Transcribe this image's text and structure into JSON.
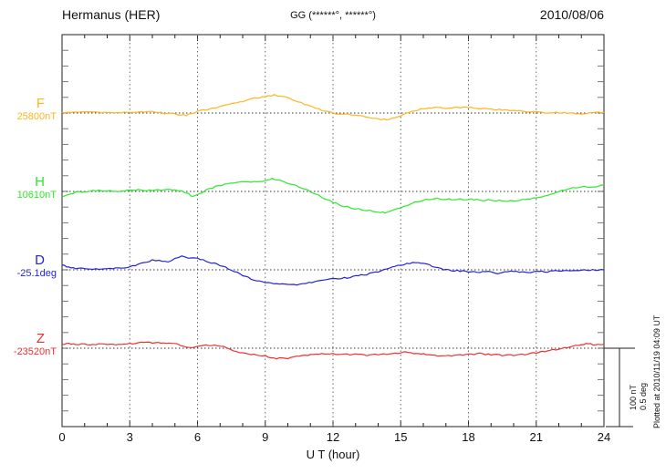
{
  "header": {
    "station": "Hermanus (HER)",
    "coordinates": "GG (******°, ******°)",
    "date": "2010/08/06"
  },
  "xaxis": {
    "label": "U T (hour)",
    "ticks": [
      "0",
      "3",
      "6",
      "9",
      "12",
      "15",
      "18",
      "21",
      "24"
    ]
  },
  "scale_bar": {
    "line1": "100 nT",
    "line2": "0.5 deg"
  },
  "plotted_at": "Plotted at 2010/11/19 04:09 UT",
  "colors": {
    "axis": "#222222",
    "minor_ticks": "#777777",
    "grid": "#666666",
    "baseline": "#333333",
    "background": "#FFFFFF"
  },
  "chart_data": {
    "type": "line",
    "title": "Hermanus (HER) magnetogram 2010/08/06",
    "xlabel": "U T (hour)",
    "x_range": [
      0,
      24
    ],
    "x_major_ticks": [
      0,
      3,
      6,
      9,
      12,
      15,
      18,
      21,
      24
    ],
    "x_minor_tick_step_hours": 1,
    "grid": "dotted vertical lines every 3 h; dotted horizontal baseline per trace",
    "scale_bar": {
      "nT": 100,
      "deg": 0.5
    },
    "values_are_offsets_from_baseline": true,
    "series": [
      {
        "name": "F",
        "label": "F",
        "baseline_label": "25800nT",
        "baseline": 25800,
        "units": "nT",
        "scale_span_per_bar": 100,
        "color": "#FFB41E",
        "points": [
          [
            0,
            0
          ],
          [
            0.5,
            1
          ],
          [
            1,
            2
          ],
          [
            1.5,
            1
          ],
          [
            2,
            1
          ],
          [
            2.5,
            0
          ],
          [
            3,
            1
          ],
          [
            3.5,
            1
          ],
          [
            4,
            2
          ],
          [
            4.5,
            0
          ],
          [
            5,
            -1
          ],
          [
            5.5,
            -3
          ],
          [
            6,
            2
          ],
          [
            6.5,
            5
          ],
          [
            7,
            8
          ],
          [
            7.5,
            12
          ],
          [
            8,
            15
          ],
          [
            8.5,
            19
          ],
          [
            9,
            21
          ],
          [
            9.4,
            23
          ],
          [
            9.8,
            21
          ],
          [
            10.2,
            17
          ],
          [
            10.6,
            13
          ],
          [
            11,
            9
          ],
          [
            11.5,
            4
          ],
          [
            12,
            0
          ],
          [
            12.5,
            -1
          ],
          [
            13,
            -3
          ],
          [
            13.5,
            -5
          ],
          [
            14,
            -8
          ],
          [
            14.5,
            -8
          ],
          [
            15,
            -3
          ],
          [
            15.5,
            2
          ],
          [
            16,
            6
          ],
          [
            16.5,
            7
          ],
          [
            17,
            6
          ],
          [
            17.5,
            7
          ],
          [
            18,
            7
          ],
          [
            18.5,
            6
          ],
          [
            19,
            5
          ],
          [
            19.5,
            4
          ],
          [
            20,
            3
          ],
          [
            20.5,
            2
          ],
          [
            21,
            1
          ],
          [
            21.5,
            0
          ],
          [
            22,
            1
          ],
          [
            22.5,
            0
          ],
          [
            23,
            -1
          ],
          [
            23.5,
            0
          ],
          [
            24,
            1
          ]
        ]
      },
      {
        "name": "H",
        "label": "H",
        "baseline_label": "10610nT",
        "baseline": 10610,
        "units": "nT",
        "scale_span_per_bar": 100,
        "color": "#2DE82D",
        "points": [
          [
            0,
            -8
          ],
          [
            0.3,
            -4
          ],
          [
            0.6,
            -1
          ],
          [
            1,
            0
          ],
          [
            1.5,
            1
          ],
          [
            2,
            1
          ],
          [
            2.5,
            0
          ],
          [
            3,
            2
          ],
          [
            3.5,
            2
          ],
          [
            4,
            1
          ],
          [
            4.5,
            2
          ],
          [
            5,
            2
          ],
          [
            5.3,
            1
          ],
          [
            5.6,
            -3
          ],
          [
            5.8,
            -7
          ],
          [
            6.1,
            -3
          ],
          [
            6.4,
            2
          ],
          [
            6.8,
            6
          ],
          [
            7.2,
            9
          ],
          [
            7.6,
            11
          ],
          [
            8,
            12
          ],
          [
            8.5,
            12
          ],
          [
            9,
            13
          ],
          [
            9.3,
            16
          ],
          [
            9.6,
            14
          ],
          [
            10,
            11
          ],
          [
            10.5,
            6
          ],
          [
            11,
            0
          ],
          [
            11.5,
            -7
          ],
          [
            12,
            -14
          ],
          [
            12.5,
            -19
          ],
          [
            13,
            -22
          ],
          [
            13.5,
            -24
          ],
          [
            14,
            -26
          ],
          [
            14.3,
            -27
          ],
          [
            14.7,
            -24
          ],
          [
            15,
            -21
          ],
          [
            15.5,
            -15
          ],
          [
            16,
            -11
          ],
          [
            16.5,
            -9
          ],
          [
            17,
            -10
          ],
          [
            17.5,
            -10
          ],
          [
            18,
            -10
          ],
          [
            18.5,
            -11
          ],
          [
            19,
            -11
          ],
          [
            19.5,
            -12
          ],
          [
            20,
            -12
          ],
          [
            20.5,
            -10
          ],
          [
            21,
            -8
          ],
          [
            21.5,
            -5
          ],
          [
            22,
            0
          ],
          [
            22.5,
            4
          ],
          [
            23,
            6
          ],
          [
            23.5,
            6
          ],
          [
            24,
            8
          ]
        ]
      },
      {
        "name": "D",
        "label": "D",
        "baseline_label": "-25.1deg",
        "baseline": -25.1,
        "units": "deg",
        "scale_span_per_bar": 0.5,
        "color": "#2424D8",
        "points": [
          [
            0,
            0.03
          ],
          [
            0.3,
            0.018
          ],
          [
            0.6,
            0.01
          ],
          [
            1,
            0.006
          ],
          [
            1.5,
            0.006
          ],
          [
            2,
            0.006
          ],
          [
            2.5,
            0.01
          ],
          [
            3,
            0.017
          ],
          [
            3.5,
            0.04
          ],
          [
            4,
            0.062
          ],
          [
            4.3,
            0.058
          ],
          [
            4.7,
            0.052
          ],
          [
            5,
            0.07
          ],
          [
            5.3,
            0.087
          ],
          [
            5.6,
            0.078
          ],
          [
            6,
            0.07
          ],
          [
            6.5,
            0.052
          ],
          [
            7,
            0.029
          ],
          [
            7.5,
            0
          ],
          [
            8,
            -0.035
          ],
          [
            8.5,
            -0.064
          ],
          [
            9,
            -0.081
          ],
          [
            9.5,
            -0.087
          ],
          [
            10,
            -0.093
          ],
          [
            10.4,
            -0.093
          ],
          [
            10.8,
            -0.087
          ],
          [
            11.2,
            -0.076
          ],
          [
            11.6,
            -0.064
          ],
          [
            12,
            -0.058
          ],
          [
            12.5,
            -0.052
          ],
          [
            13,
            -0.041
          ],
          [
            13.5,
            -0.029
          ],
          [
            14,
            -0.012
          ],
          [
            14.5,
            0.012
          ],
          [
            15,
            0.029
          ],
          [
            15.4,
            0.041
          ],
          [
            15.8,
            0.047
          ],
          [
            16,
            0.041
          ],
          [
            16.4,
            0.023
          ],
          [
            16.8,
            0.006
          ],
          [
            17,
            0
          ],
          [
            17.5,
            -0.006
          ],
          [
            18,
            -0.012
          ],
          [
            18.5,
            -0.015
          ],
          [
            19,
            -0.012
          ],
          [
            19.3,
            -0.029
          ],
          [
            19.6,
            -0.012
          ],
          [
            20,
            -0.012
          ],
          [
            20.5,
            -0.017
          ],
          [
            21,
            -0.012
          ],
          [
            21.5,
            -0.012
          ],
          [
            22,
            -0.006
          ],
          [
            22.5,
            -0.006
          ],
          [
            23,
            -0.003
          ],
          [
            23.5,
            0
          ],
          [
            24,
            0
          ]
        ]
      },
      {
        "name": "Z",
        "label": "Z",
        "baseline_label": "-23520nT",
        "baseline": -23520,
        "units": "nT",
        "scale_span_per_bar": 100,
        "color": "#F03030",
        "points": [
          [
            0,
            5
          ],
          [
            0.3,
            6
          ],
          [
            0.6,
            5
          ],
          [
            1,
            5
          ],
          [
            1.5,
            5
          ],
          [
            2,
            5
          ],
          [
            2.5,
            5
          ],
          [
            3,
            6
          ],
          [
            3.5,
            7
          ],
          [
            4,
            7
          ],
          [
            4.5,
            7
          ],
          [
            5,
            6
          ],
          [
            5.5,
            1
          ],
          [
            5.8,
            0
          ],
          [
            6.1,
            3
          ],
          [
            6.5,
            4
          ],
          [
            7,
            3
          ],
          [
            7.3,
            0
          ],
          [
            7.6,
            -3
          ],
          [
            8,
            -6
          ],
          [
            8.5,
            -8
          ],
          [
            9,
            -10
          ],
          [
            9.5,
            -13
          ],
          [
            10,
            -13
          ],
          [
            10.5,
            -10
          ],
          [
            11,
            -8
          ],
          [
            11.5,
            -7
          ],
          [
            12,
            -7
          ],
          [
            12.5,
            -8
          ],
          [
            13,
            -8
          ],
          [
            13.5,
            -9
          ],
          [
            14,
            -8
          ],
          [
            14.5,
            -7
          ],
          [
            15,
            -6
          ],
          [
            15.3,
            -5
          ],
          [
            15.7,
            -7
          ],
          [
            16,
            -7
          ],
          [
            16.5,
            -9
          ],
          [
            17,
            -10
          ],
          [
            17.5,
            -9
          ],
          [
            18,
            -8
          ],
          [
            18.5,
            -7
          ],
          [
            19,
            -8
          ],
          [
            19.5,
            -9
          ],
          [
            20,
            -9
          ],
          [
            20.5,
            -8
          ],
          [
            21,
            -6
          ],
          [
            21.5,
            -3
          ],
          [
            22,
            -1
          ],
          [
            22.5,
            2
          ],
          [
            23,
            5
          ],
          [
            23.3,
            6
          ],
          [
            23.6,
            4
          ],
          [
            24,
            5
          ]
        ]
      }
    ]
  }
}
